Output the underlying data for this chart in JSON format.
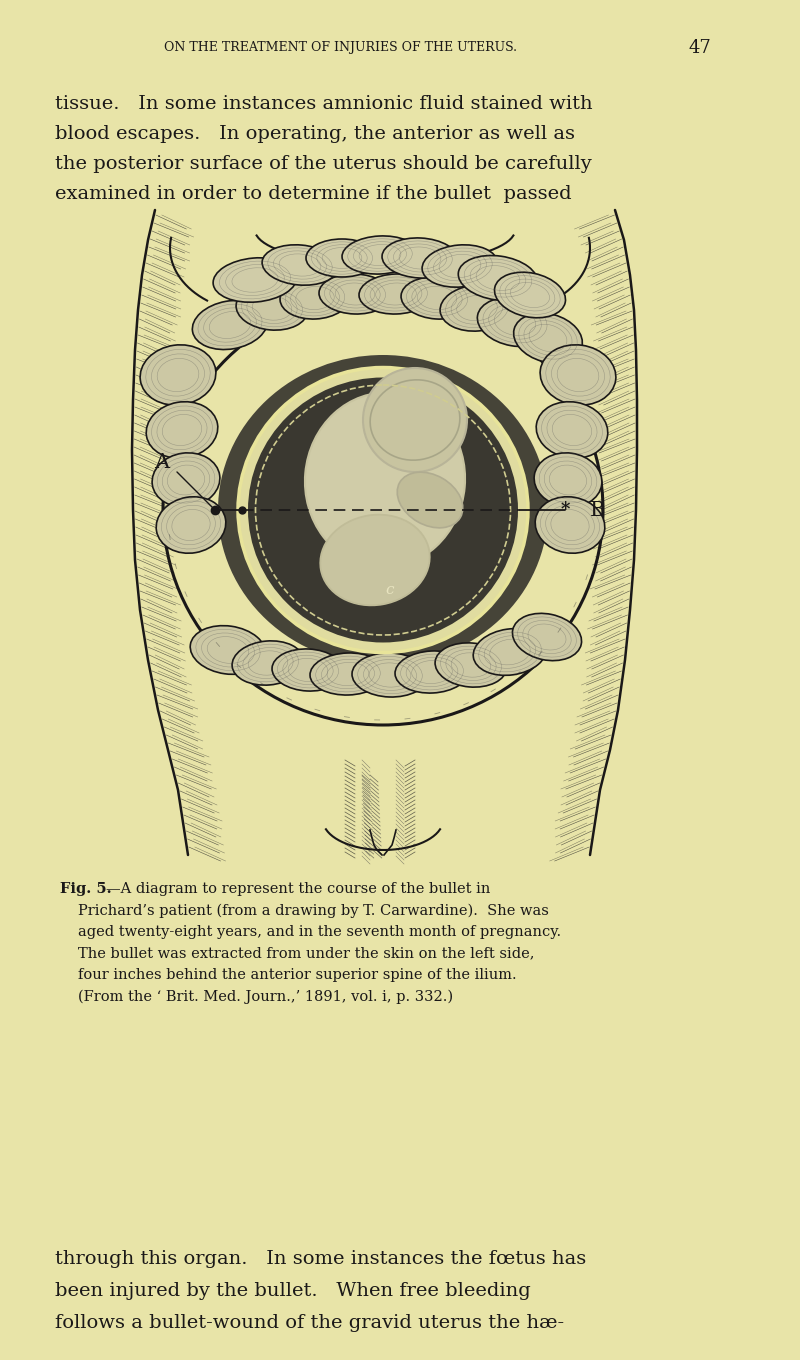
{
  "bg_color": "#e8e4a8",
  "text_color": "#1a1a1a",
  "ink_color": "#1a1818",
  "header_text": "ON THE TREATMENT OF INJURIES OF THE UTERUS.",
  "page_number": "47",
  "para1_lines": [
    "tissue.   In some instances amnionic fluid stained with",
    "blood escapes.   In operating, the anterior as well as",
    "the posterior surface of the uterus should be carefully",
    "examined in order to determine if the bullet  passed"
  ],
  "caption_label": "Fig. 5.",
  "caption_line1": "—A diagram to represent the course of the bullet in",
  "caption_lines": [
    "Prichard’s patient (from a drawing by T. Carwardine).  She was",
    "aged twenty-eight years, and in the seventh month of pregnancy.",
    "The bullet was extracted from under the skin on the left side,",
    "four inches behind the anterior superior spine of the ilium.",
    "(From the ‘ Brit. Med. Journ.,’ 1891, vol. i, p. 332.)"
  ],
  "para2_lines": [
    "through this organ.   In some instances the fœtus has",
    "been injured by the bullet.   When free bleeding",
    "follows a bullet-wound of the gravid uterus the hæ-"
  ],
  "label_A": "A",
  "label_B": "B",
  "label_c": "c"
}
